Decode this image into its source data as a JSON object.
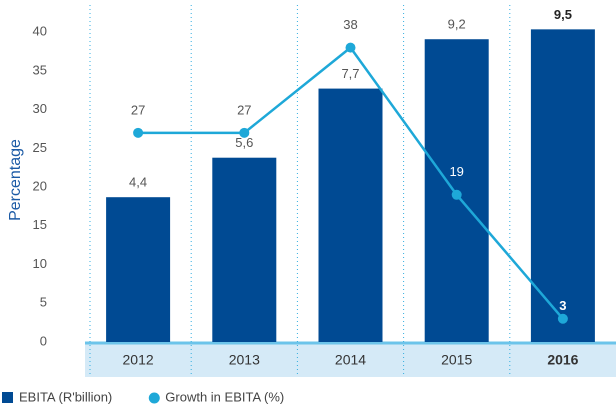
{
  "chart_data": {
    "type": "bar",
    "ylabel": "Percentage",
    "categories": [
      "2012",
      "2013",
      "2014",
      "2015",
      "2016"
    ],
    "series": [
      {
        "name": "EBITA (R'billion)",
        "type": "bar",
        "axis": "y2",
        "color": "#004a93",
        "values": [
          4.4,
          5.6,
          7.7,
          9.2,
          9.5
        ],
        "value_labels": [
          "4,4",
          "5,6",
          "7,7",
          "9,2",
          "9,5"
        ]
      },
      {
        "name": "Growth in EBITA (%)",
        "type": "line",
        "color": "#1ea8d8",
        "values": [
          27,
          27,
          38,
          19,
          3
        ]
      }
    ],
    "ylim": [
      0,
      43.5
    ],
    "yticks": [
      0,
      5,
      10,
      15,
      20,
      25,
      30,
      35,
      40
    ],
    "y2lim": [
      0,
      10.24
    ]
  }
}
